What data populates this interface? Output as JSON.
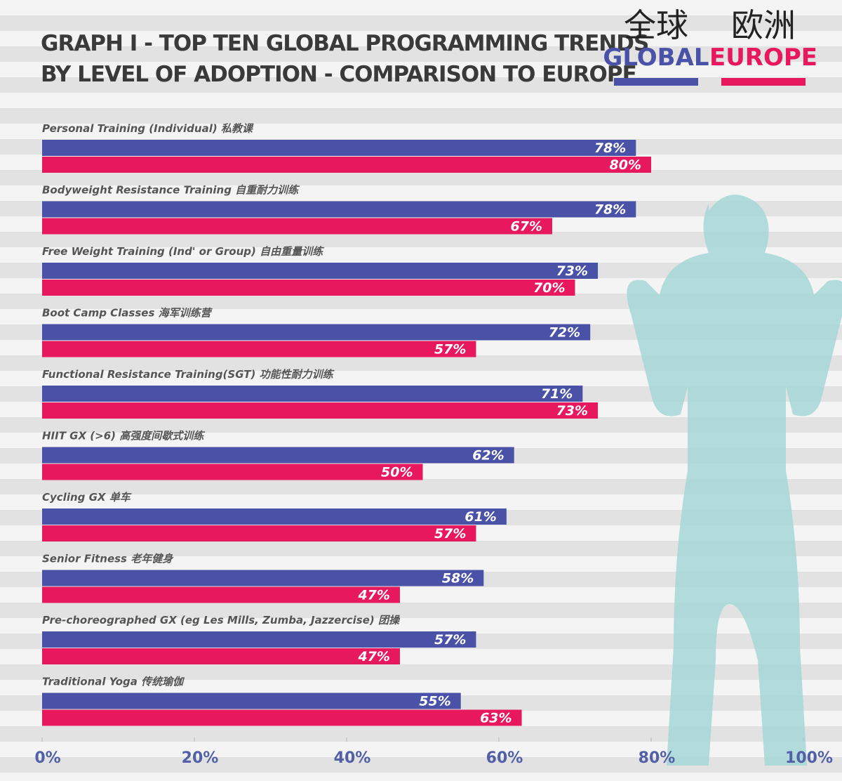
{
  "chart_data": {
    "type": "hbar",
    "title": [
      "GRAPH I - TOP TEN GLOBAL PROGRAMMING TRENDS",
      "BY LEVEL OF ADOPTION - COMPARISON TO EUROPE"
    ],
    "categories": [
      "Personal Training (Individual) 私教课",
      "Bodyweight Resistance Training 自重耐力训练",
      "Free Weight Training (Ind' or Group) 自由重量训练",
      "Boot Camp Classes 海军训练营",
      "Functional Resistance Training(SGT) 功能性耐力训练",
      "HIIT GX (>6) 高强度间歇式训练",
      "Cycling GX 单车",
      "Senior Fitness 老年健身",
      "Pre-choreographed GX (eg Les Mills, Zumba, Jazzercise) 团操",
      "Traditional Yoga 传统瑜伽"
    ],
    "series": [
      {
        "name": "GLOBAL",
        "name_cn": "全球",
        "color": "#4a52a8",
        "values": [
          78,
          78,
          73,
          72,
          71,
          62,
          61,
          58,
          57,
          55
        ],
        "value_labels": [
          "78%",
          "78%",
          "73%",
          "72%",
          "71%",
          "62%",
          "61%",
          "58%",
          "57%",
          "55%"
        ]
      },
      {
        "name": "EUROPE",
        "name_cn": "欧洲",
        "color": "#e8185e",
        "values": [
          80,
          67,
          70,
          57,
          73,
          50,
          57,
          47,
          47,
          63
        ],
        "value_labels": [
          "80%",
          "67%",
          "70%",
          "57%",
          "73%",
          "50%",
          "57%",
          "47%",
          "47%",
          "63%"
        ]
      }
    ],
    "xlim": [
      0,
      100
    ],
    "xticks": [
      {
        "value": 0,
        "label": "0%"
      },
      {
        "value": 20,
        "label": "20%"
      },
      {
        "value": 40,
        "label": "40%"
      },
      {
        "value": 60,
        "label": "60%"
      },
      {
        "value": 80,
        "label": "80%"
      },
      {
        "value": 100,
        "label": "100%"
      }
    ]
  }
}
